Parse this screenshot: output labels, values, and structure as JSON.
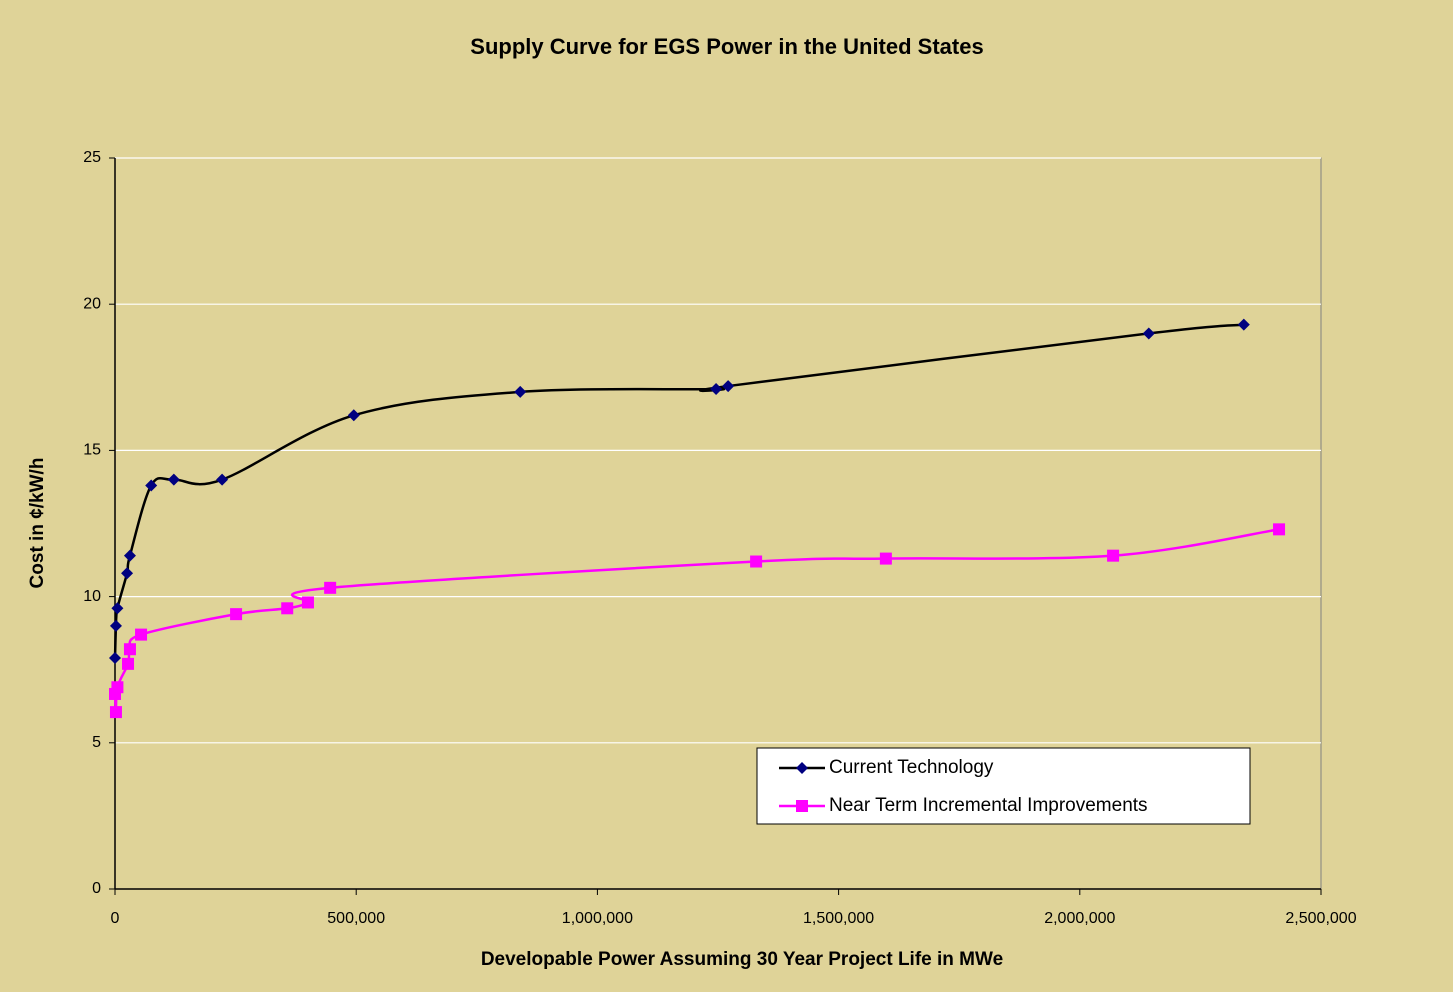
{
  "chart_data": {
    "type": "scatter-smooth",
    "title": "Supply Curve for EGS Power in the United States",
    "xlabel": "Developable Power Assuming 30 Year Project Life in MWe",
    "ylabel": "Cost in ¢/kW/h",
    "xlim": [
      0,
      2500000
    ],
    "ylim": [
      0,
      25
    ],
    "xticks": [
      0,
      {
        "value": 500000,
        "label": "500,000"
      },
      {
        "value": 1000000,
        "label": "1,000,000"
      },
      {
        "value": 1500000,
        "label": "1,500,000"
      },
      {
        "value": 2000000,
        "label": "2,000,000"
      },
      {
        "value": 2500000,
        "label": "2,500,000"
      }
    ],
    "yticks": [
      0,
      5,
      10,
      15,
      20,
      25
    ],
    "grid": true,
    "legend": "lower right",
    "series": [
      {
        "name": "Current Technology",
        "color": "#000080",
        "line_color": "#000000",
        "marker": "diamond",
        "x": [
          0,
          2000,
          5000,
          25000,
          31000,
          75000,
          122000,
          222000,
          495000,
          840000,
          1246000,
          1271000,
          2143000,
          2340000
        ],
        "values": [
          7.9,
          9.0,
          9.6,
          10.8,
          11.4,
          13.8,
          14.0,
          14.0,
          16.2,
          17.0,
          17.1,
          17.2,
          19.0,
          19.3
        ]
      },
      {
        "name": "Near Term Incremental Improvements",
        "color": "#ff00ff",
        "line_color": "#ff00ff",
        "marker": "square",
        "x": [
          0,
          2000,
          5000,
          27000,
          31000,
          54000,
          251000,
          357000,
          400000,
          446000,
          1329000,
          1598000,
          2069000,
          2413000
        ],
        "values": [
          6.67,
          6.05,
          6.9,
          7.7,
          8.2,
          8.7,
          9.4,
          9.6,
          9.8,
          10.3,
          11.2,
          11.3,
          11.4,
          12.3
        ]
      }
    ]
  }
}
